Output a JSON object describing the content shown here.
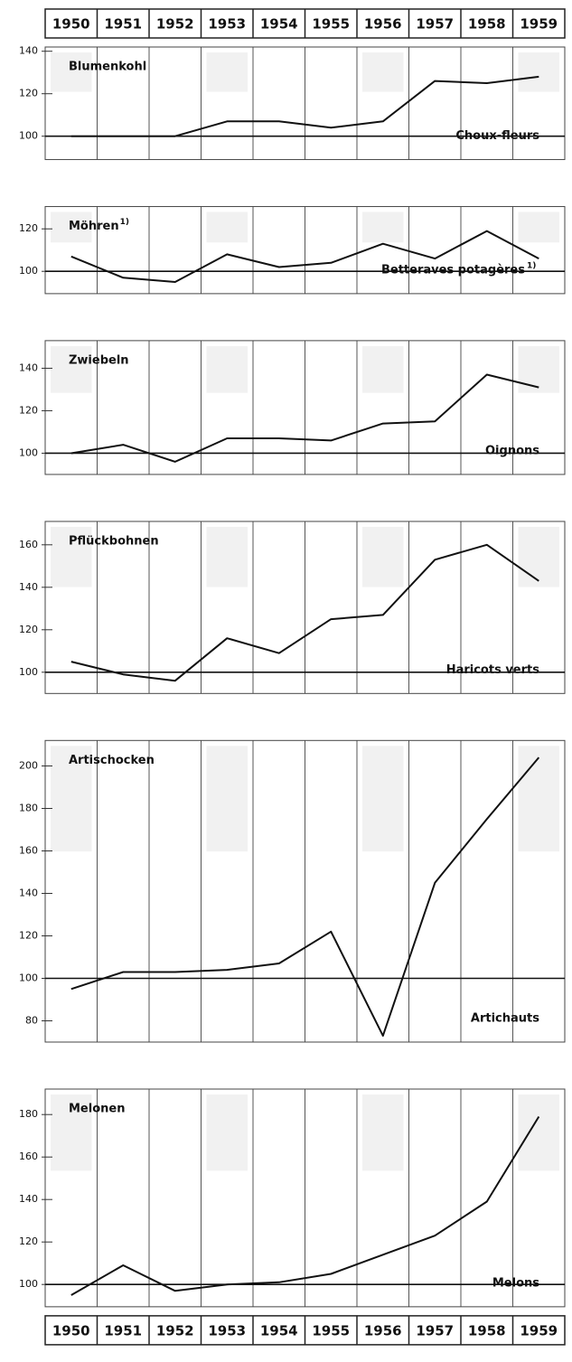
{
  "x_axis": {
    "categories": [
      "1950",
      "1951",
      "1952",
      "1953",
      "1954",
      "1955",
      "1956",
      "1957",
      "1958",
      "1959"
    ]
  },
  "chart_data": [
    {
      "type": "line",
      "title": "Blumenkohl",
      "subtitle": "Choux-fleurs",
      "color": "#111111",
      "baseline": 100,
      "values": [
        100,
        100,
        100,
        107,
        107,
        104,
        107,
        126,
        125,
        128
      ],
      "ylim": [
        89,
        142
      ],
      "yticks": [
        100,
        120,
        140
      ]
    },
    {
      "type": "line",
      "title": "Möhren",
      "title_note": "1)",
      "subtitle": "Betteraves potagères",
      "subtitle_note": "1)",
      "color": "#111111",
      "baseline": 100,
      "values": [
        107,
        97,
        95,
        108,
        102,
        104,
        113,
        106,
        119,
        106
      ],
      "ylim": [
        89.5,
        130.5
      ],
      "yticks": [
        100,
        120
      ]
    },
    {
      "type": "line",
      "title": "Zwiebeln",
      "subtitle": "Oignons",
      "color": "#111111",
      "baseline": 100,
      "values": [
        100,
        104,
        96,
        107,
        107,
        106,
        114,
        115,
        137,
        131
      ],
      "ylim": [
        90,
        153
      ],
      "yticks": [
        100,
        120,
        140
      ]
    },
    {
      "type": "line",
      "title": "Pflückbohnen",
      "subtitle": "Haricots verts",
      "color": "#111111",
      "baseline": 100,
      "values": [
        105,
        99,
        96,
        116,
        109,
        125,
        127,
        153,
        160,
        143
      ],
      "ylim": [
        90,
        171
      ],
      "yticks": [
        100,
        120,
        140,
        160
      ]
    },
    {
      "type": "line",
      "title": "Artischocken",
      "subtitle": "Artichauts",
      "color": "#111111",
      "baseline": 100,
      "values": [
        95,
        103,
        103,
        104,
        107,
        122,
        73,
        145,
        175,
        204
      ],
      "ylim": [
        70,
        212
      ],
      "yticks": [
        80,
        100,
        120,
        140,
        160,
        180,
        200
      ]
    },
    {
      "type": "line",
      "title": "Melonen",
      "subtitle": "Melons",
      "color": "#111111",
      "baseline": 100,
      "values": [
        95,
        109,
        97,
        100,
        101,
        105,
        114,
        123,
        139,
        179
      ],
      "ylim": [
        89.5,
        192
      ],
      "yticks": [
        100,
        120,
        140,
        160,
        180
      ]
    }
  ]
}
